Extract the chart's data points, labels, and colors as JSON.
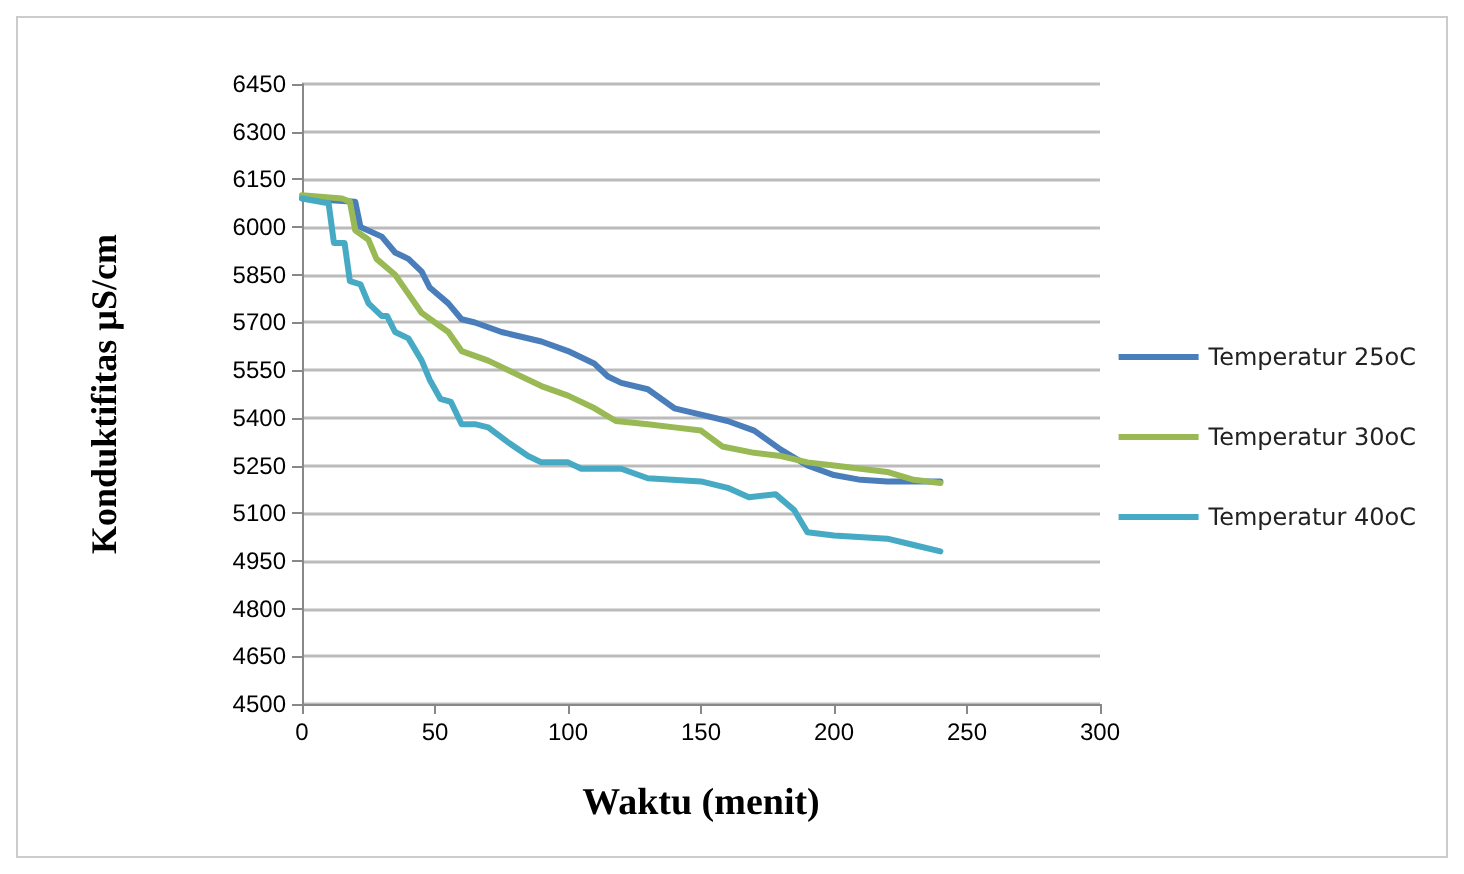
{
  "chart_data": {
    "type": "line",
    "xlabel": "Waktu (menit)",
    "ylabel": "Konduktifitas µS/cm",
    "xlim": [
      0,
      300
    ],
    "xticks": [
      0,
      50,
      100,
      150,
      200,
      250,
      300
    ],
    "ylim": [
      4500,
      6450
    ],
    "yticks": [
      4500,
      4650,
      4800,
      4950,
      5100,
      5250,
      5400,
      5550,
      5700,
      5850,
      6000,
      6150,
      6300,
      6450
    ],
    "grid": "y",
    "legend": "right",
    "marker": "none",
    "line_style": "solid",
    "series": [
      {
        "name": "Temperatur 25oC",
        "color": "#4a7ebb",
        "x": [
          0,
          20,
          22,
          30,
          35,
          40,
          45,
          48,
          55,
          60,
          65,
          75,
          90,
          100,
          110,
          115,
          120,
          130,
          140,
          150,
          160,
          170,
          180,
          190,
          200,
          210,
          220,
          240
        ],
        "values": [
          6090,
          6080,
          6000,
          5970,
          5920,
          5900,
          5860,
          5810,
          5760,
          5710,
          5700,
          5670,
          5640,
          5610,
          5570,
          5530,
          5510,
          5490,
          5430,
          5410,
          5390,
          5360,
          5300,
          5250,
          5220,
          5205,
          5200,
          5200
        ]
      },
      {
        "name": "Temperatur 30oC",
        "color": "#98b954",
        "x": [
          0,
          15,
          18,
          20,
          25,
          28,
          35,
          40,
          45,
          50,
          55,
          60,
          70,
          80,
          90,
          100,
          110,
          118,
          130,
          140,
          150,
          158,
          170,
          180,
          190,
          200,
          220,
          230,
          240
        ],
        "values": [
          6100,
          6090,
          6080,
          5990,
          5960,
          5900,
          5850,
          5790,
          5730,
          5700,
          5670,
          5610,
          5580,
          5540,
          5500,
          5470,
          5430,
          5390,
          5380,
          5370,
          5360,
          5310,
          5290,
          5280,
          5260,
          5250,
          5230,
          5205,
          5195
        ]
      },
      {
        "name": "Temperatur 40oC",
        "color": "#46aac5",
        "x": [
          0,
          10,
          12,
          16,
          18,
          22,
          25,
          30,
          32,
          35,
          40,
          45,
          48,
          52,
          56,
          60,
          65,
          70,
          78,
          85,
          90,
          100,
          105,
          120,
          130,
          150,
          160,
          168,
          178,
          185,
          190,
          200,
          220,
          230,
          240
        ],
        "values": [
          6090,
          6075,
          5950,
          5950,
          5830,
          5820,
          5760,
          5720,
          5720,
          5670,
          5650,
          5580,
          5520,
          5460,
          5450,
          5380,
          5380,
          5370,
          5320,
          5280,
          5260,
          5260,
          5240,
          5240,
          5210,
          5200,
          5180,
          5150,
          5160,
          5110,
          5040,
          5030,
          5020,
          5000,
          4980
        ]
      }
    ]
  }
}
